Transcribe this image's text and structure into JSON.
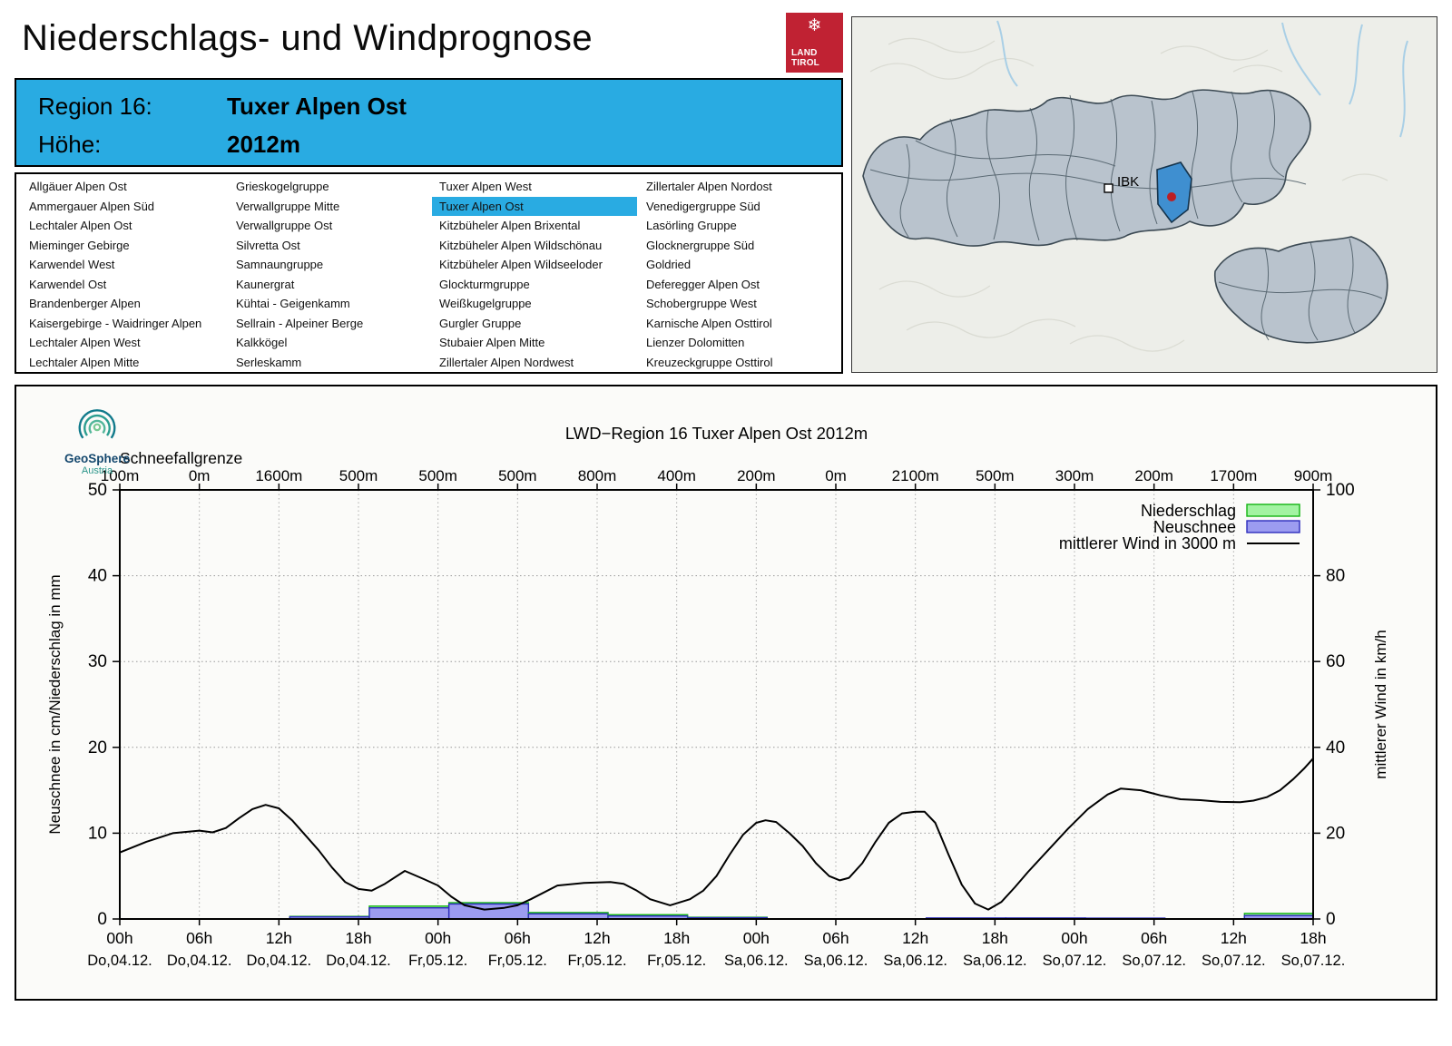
{
  "page": {
    "title": "Niederschlags- und Windprognose"
  },
  "tirol_logo": {
    "line1": "LAND",
    "line2": "TIROL",
    "snowflake_icon": "❄",
    "color": "#c02233"
  },
  "region_header": {
    "label_region": "Region 16:",
    "region_name": "Tuxer Alpen Ost",
    "label_hoehe": "Höhe:",
    "hoehe_value": "2012m",
    "bg_color": "#29abe2"
  },
  "region_list": {
    "selected": "Tuxer Alpen Ost",
    "columns": [
      [
        "Allgäuer Alpen Ost",
        "Ammergauer Alpen Süd",
        "Lechtaler Alpen Ost",
        "Mieminger Gebirge",
        "Karwendel West",
        "Karwendel Ost",
        "Brandenberger Alpen",
        "Kaisergebirge - Waidringer Alpen",
        "Lechtaler Alpen West",
        "Lechtaler Alpen Mitte"
      ],
      [
        "Grieskogelgruppe",
        "Verwallgruppe Mitte",
        "Verwallgruppe Ost",
        "Silvretta Ost",
        "Samnaungruppe",
        "Kaunergrat",
        "Kühtai - Geigenkamm",
        "Sellrain - Alpeiner Berge",
        "Kalkkögel",
        "Serleskamm"
      ],
      [
        "Tuxer Alpen West",
        "Tuxer Alpen Ost",
        "Kitzbüheler Alpen Brixental",
        "Kitzbüheler Alpen Wildschönau",
        "Kitzbüheler Alpen Wildseeloder",
        "Glockturmgruppe",
        "Weißkugelgruppe",
        "Gurgler Gruppe",
        "Stubaier Alpen Mitte",
        "Zillertaler Alpen Nordwest"
      ],
      [
        "Zillertaler Alpen Nordost",
        "Venedigergruppe Süd",
        "Lasörling Gruppe",
        "Glocknergruppe Süd",
        "Goldried",
        "Deferegger Alpen Ost",
        "Schobergruppe West",
        "Karnische Alpen Osttirol",
        "Lienzer Dolomitten",
        "Kreuzeckgruppe Osttirol"
      ]
    ]
  },
  "map": {
    "ibk_label": "IBK",
    "selected_region_color": "#3f8fd0",
    "marker_dot_color": "#bb1f24"
  },
  "geosphere_logo": {
    "name": "GeoSphere",
    "sub": "Austria"
  },
  "chart_data": {
    "type": "bar+line combo",
    "title": "LWD−Region 16 Tuxer Alpen Ost 2012m",
    "left_axis": {
      "label": "Neuschnee in cm/Niederschlag in mm",
      "min": 0,
      "max": 50,
      "ticks": [
        0,
        10,
        20,
        30,
        40,
        50
      ]
    },
    "right_axis": {
      "label": "mittlerer Wind in km/h",
      "min": 0,
      "max": 100,
      "ticks": [
        0,
        20,
        40,
        60,
        80,
        100
      ]
    },
    "schneefallgrenze": {
      "label": "Schneefallgrenze",
      "values": [
        "100m",
        "0m",
        "1600m",
        "500m",
        "500m",
        "500m",
        "800m",
        "400m",
        "200m",
        "0m",
        "2100m",
        "500m",
        "300m",
        "200m",
        "1700m",
        "900m"
      ]
    },
    "x_ticks": [
      {
        "time": "00h",
        "date": "Do,04.12."
      },
      {
        "time": "06h",
        "date": "Do,04.12."
      },
      {
        "time": "12h",
        "date": "Do,04.12."
      },
      {
        "time": "18h",
        "date": "Do,04.12."
      },
      {
        "time": "00h",
        "date": "Fr,05.12."
      },
      {
        "time": "06h",
        "date": "Fr,05.12."
      },
      {
        "time": "12h",
        "date": "Fr,05.12."
      },
      {
        "time": "18h",
        "date": "Fr,05.12."
      },
      {
        "time": "00h",
        "date": "Sa,06.12."
      },
      {
        "time": "06h",
        "date": "Sa,06.12."
      },
      {
        "time": "12h",
        "date": "Sa,06.12."
      },
      {
        "time": "18h",
        "date": "Sa,06.12."
      },
      {
        "time": "00h",
        "date": "So,07.12."
      },
      {
        "time": "06h",
        "date": "So,07.12."
      },
      {
        "time": "12h",
        "date": "So,07.12."
      },
      {
        "time": "18h",
        "date": "So,07.12."
      }
    ],
    "legend": [
      {
        "label": "Niederschlag",
        "type": "box",
        "fill": "#a2f3a2",
        "stroke": "#12b412"
      },
      {
        "label": "Neuschnee",
        "type": "box",
        "fill": "#9c9cf0",
        "stroke": "#2c2cbc"
      },
      {
        "label": "mittlerer Wind in 3000 m",
        "type": "line",
        "stroke": "#000000"
      }
    ],
    "bars_per_6h_interval": [
      {
        "i": 2,
        "niederschlag_mm": 0.3,
        "neuschnee_cm": 0.25
      },
      {
        "i": 3,
        "niederschlag_mm": 1.5,
        "neuschnee_cm": 1.3
      },
      {
        "i": 4,
        "niederschlag_mm": 1.9,
        "neuschnee_cm": 1.75
      },
      {
        "i": 5,
        "niederschlag_mm": 0.75,
        "neuschnee_cm": 0.6
      },
      {
        "i": 6,
        "niederschlag_mm": 0.5,
        "neuschnee_cm": 0.35
      },
      {
        "i": 7,
        "niederschlag_mm": 0.2,
        "neuschnee_cm": 0.15
      },
      {
        "i": 10,
        "niederschlag_mm": 0,
        "neuschnee_cm": 0.12
      },
      {
        "i": 11,
        "niederschlag_mm": 0,
        "neuschnee_cm": 0.12
      },
      {
        "i": 12,
        "niederschlag_mm": 0,
        "neuschnee_cm": 0.1
      },
      {
        "i": 14,
        "niederschlag_mm": 0.65,
        "neuschnee_cm": 0.4
      }
    ],
    "wind_kmh_by_hour": [
      [
        0,
        15.5
      ],
      [
        2,
        18
      ],
      [
        4,
        20
      ],
      [
        6,
        20.6
      ],
      [
        7,
        20.2
      ],
      [
        8,
        21.2
      ],
      [
        9,
        23.5
      ],
      [
        10,
        25.6
      ],
      [
        11,
        26.6
      ],
      [
        12,
        25.8
      ],
      [
        13,
        23
      ],
      [
        14,
        19.5
      ],
      [
        15,
        16
      ],
      [
        16,
        12
      ],
      [
        17,
        8.6
      ],
      [
        18,
        7
      ],
      [
        19,
        6.6
      ],
      [
        20,
        8.2
      ],
      [
        21.5,
        11.2
      ],
      [
        23,
        9.2
      ],
      [
        24,
        7.8
      ],
      [
        25,
        5.2
      ],
      [
        26,
        3.2
      ],
      [
        27.5,
        2.2
      ],
      [
        29,
        2.6
      ],
      [
        30,
        3.2
      ],
      [
        31,
        4.6
      ],
      [
        33,
        7.8
      ],
      [
        35,
        8.4
      ],
      [
        37,
        8.6
      ],
      [
        38,
        8.2
      ],
      [
        39,
        6.6
      ],
      [
        40,
        4.6
      ],
      [
        41.5,
        3.2
      ],
      [
        43,
        4.6
      ],
      [
        44,
        6.6
      ],
      [
        45,
        10
      ],
      [
        46,
        15
      ],
      [
        47,
        19.6
      ],
      [
        48,
        22.4
      ],
      [
        48.7,
        23
      ],
      [
        49.5,
        22.6
      ],
      [
        50.5,
        20
      ],
      [
        51.5,
        17
      ],
      [
        52.5,
        13
      ],
      [
        53.5,
        10
      ],
      [
        54.3,
        9
      ],
      [
        55,
        9.6
      ],
      [
        56,
        13
      ],
      [
        57,
        18
      ],
      [
        58,
        22.4
      ],
      [
        59,
        24.6
      ],
      [
        60,
        25
      ],
      [
        60.7,
        25
      ],
      [
        61.5,
        22.4
      ],
      [
        62.5,
        15
      ],
      [
        63.5,
        8
      ],
      [
        64.5,
        3.6
      ],
      [
        65.5,
        2.2
      ],
      [
        66.5,
        4
      ],
      [
        67.5,
        7.4
      ],
      [
        68.5,
        11
      ],
      [
        70,
        16
      ],
      [
        71.5,
        21
      ],
      [
        73,
        25.6
      ],
      [
        74.5,
        29
      ],
      [
        75.5,
        30.4
      ],
      [
        77,
        30
      ],
      [
        78.5,
        28.8
      ],
      [
        80,
        27.9
      ],
      [
        81.5,
        27.7
      ],
      [
        83,
        27.3
      ],
      [
        84.5,
        27.2
      ],
      [
        85.5,
        27.6
      ],
      [
        86.5,
        28.4
      ],
      [
        87.5,
        30
      ],
      [
        88.5,
        32.6
      ],
      [
        89.3,
        35
      ],
      [
        90,
        37.4
      ]
    ]
  }
}
